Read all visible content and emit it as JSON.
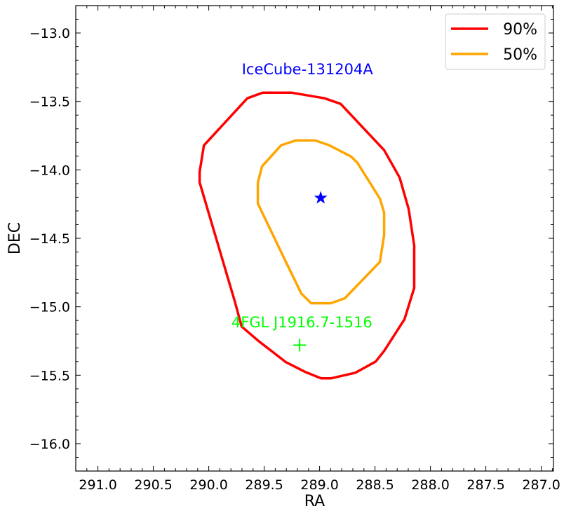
{
  "chart_data": {
    "type": "line",
    "title": "",
    "xlabel": "RA",
    "ylabel": "DEC",
    "xlim": [
      291.2,
      286.89
    ],
    "ylim": [
      -16.2,
      -12.8
    ],
    "x_inverted": true,
    "xticks": [
      291.0,
      290.5,
      290.0,
      289.5,
      289.0,
      288.5,
      288.0,
      287.5,
      287.0
    ],
    "xtick_labels": [
      "291.0",
      "290.5",
      "290.0",
      "289.5",
      "289.0",
      "288.5",
      "288.0",
      "287.5",
      "287.0"
    ],
    "yticks": [
      -13.0,
      -13.5,
      -14.0,
      -14.5,
      -15.0,
      -15.5,
      -16.0
    ],
    "ytick_labels": [
      "−13.0",
      "−13.5",
      "−14.0",
      "−14.5",
      "−15.0",
      "−15.5",
      "−16.0"
    ],
    "minor_tick_step": 0.1,
    "grid": false,
    "legend_placement": "top-right",
    "series": [
      {
        "name": "90%",
        "color": "#ff0000",
        "closed": true,
        "points": [
          [
            289.652,
            -13.477
          ],
          [
            289.513,
            -13.436
          ],
          [
            289.253,
            -13.436
          ],
          [
            288.956,
            -13.477
          ],
          [
            288.81,
            -13.518
          ],
          [
            288.418,
            -13.856
          ],
          [
            288.278,
            -14.056
          ],
          [
            288.196,
            -14.287
          ],
          [
            288.146,
            -14.554
          ],
          [
            288.146,
            -14.862
          ],
          [
            288.234,
            -15.092
          ],
          [
            288.418,
            -15.323
          ],
          [
            288.494,
            -15.4
          ],
          [
            288.677,
            -15.482
          ],
          [
            288.899,
            -15.523
          ],
          [
            288.987,
            -15.523
          ],
          [
            289.127,
            -15.477
          ],
          [
            289.304,
            -15.405
          ],
          [
            289.557,
            -15.246
          ],
          [
            289.703,
            -15.144
          ],
          [
            289.766,
            -14.959
          ],
          [
            290.082,
            -14.092
          ],
          [
            290.082,
            -14.015
          ],
          [
            290.044,
            -13.821
          ]
        ]
      },
      {
        "name": "50%",
        "color": "#ffa500",
        "closed": true,
        "points": [
          [
            289.348,
            -13.821
          ],
          [
            289.215,
            -13.785
          ],
          [
            289.038,
            -13.785
          ],
          [
            288.911,
            -13.821
          ],
          [
            288.715,
            -13.903
          ],
          [
            288.658,
            -13.949
          ],
          [
            288.456,
            -14.21
          ],
          [
            288.418,
            -14.313
          ],
          [
            288.418,
            -14.477
          ],
          [
            288.456,
            -14.672
          ],
          [
            288.772,
            -14.938
          ],
          [
            288.899,
            -14.974
          ],
          [
            289.076,
            -14.974
          ],
          [
            289.165,
            -14.903
          ],
          [
            289.323,
            -14.641
          ],
          [
            289.557,
            -14.246
          ],
          [
            289.557,
            -14.092
          ],
          [
            289.519,
            -13.974
          ]
        ]
      }
    ],
    "markers": [
      {
        "label": "IceCube-131204A",
        "marker": "star",
        "color": "#0000ff",
        "x": 288.99,
        "y": -14.205,
        "label_x": 289.11,
        "label_y": -13.26
      },
      {
        "label": "4FGL J1916.7-1516",
        "marker": "plus",
        "color": "#00ff00",
        "x": 289.18,
        "y": -15.28,
        "label_x": 289.16,
        "label_y": -15.11
      }
    ]
  }
}
